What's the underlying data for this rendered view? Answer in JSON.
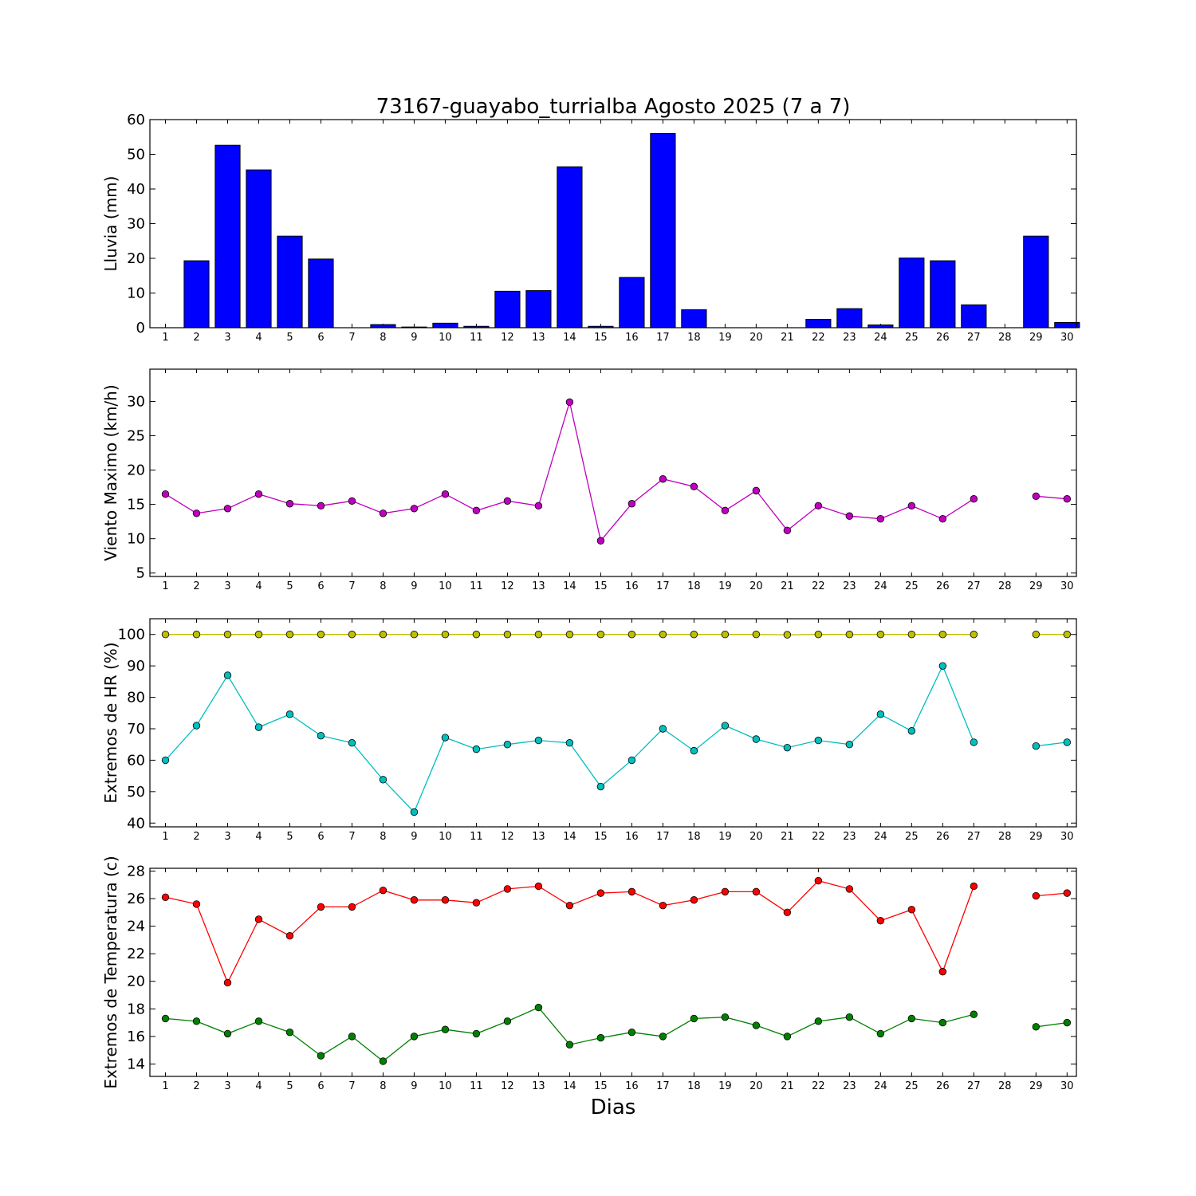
{
  "chart_data": [
    {
      "type": "bar",
      "title": "73167-guayabo_turrialba Agosto 2025  (7 a 7)",
      "ylabel": "Lluvia (mm)",
      "xlabel": "",
      "ylim": [
        0,
        60
      ],
      "yticks": [
        0,
        10,
        20,
        30,
        40,
        50,
        60
      ],
      "x": [
        1,
        2,
        3,
        4,
        5,
        6,
        7,
        8,
        9,
        10,
        11,
        12,
        13,
        14,
        15,
        16,
        17,
        18,
        19,
        20,
        21,
        22,
        23,
        24,
        25,
        26,
        27,
        28,
        29,
        30
      ],
      "series": [
        {
          "color": "#0000ff",
          "values": [
            0,
            19.3,
            52.6,
            45.5,
            26.4,
            19.8,
            0,
            0.9,
            0.2,
            1.3,
            0.4,
            10.5,
            10.7,
            46.4,
            0.4,
            14.5,
            56.0,
            5.2,
            0,
            0,
            0,
            2.4,
            5.5,
            0.8,
            20.1,
            19.3,
            6.6,
            null,
            26.4,
            1.5
          ]
        }
      ]
    },
    {
      "type": "line",
      "ylabel": "Viento Maximo (km/h)",
      "xlabel": "",
      "ylim": [
        4.5,
        34.7
      ],
      "yticks": [
        5,
        10,
        15,
        20,
        25,
        30
      ],
      "x": [
        1,
        2,
        3,
        4,
        5,
        6,
        7,
        8,
        9,
        10,
        11,
        12,
        13,
        14,
        15,
        16,
        17,
        18,
        19,
        20,
        21,
        22,
        23,
        24,
        25,
        26,
        27,
        28,
        29,
        30
      ],
      "series": [
        {
          "color": "#bf00bf",
          "values": [
            16.5,
            13.7,
            14.4,
            16.5,
            15.1,
            14.8,
            15.5,
            13.7,
            14.4,
            16.5,
            14.1,
            15.5,
            14.8,
            29.9,
            9.7,
            15.1,
            18.7,
            17.6,
            14.1,
            17.0,
            11.2,
            14.8,
            13.3,
            12.9,
            14.8,
            12.9,
            15.8,
            null,
            16.2,
            15.8
          ]
        }
      ]
    },
    {
      "type": "line",
      "ylabel": "Extremos de HR (%)",
      "xlabel": "",
      "ylim": [
        38.8,
        105
      ],
      "yticks": [
        40,
        50,
        60,
        70,
        80,
        90,
        100
      ],
      "x": [
        1,
        2,
        3,
        4,
        5,
        6,
        7,
        8,
        9,
        10,
        11,
        12,
        13,
        14,
        15,
        16,
        17,
        18,
        19,
        20,
        21,
        22,
        23,
        24,
        25,
        26,
        27,
        28,
        29,
        30
      ],
      "series": [
        {
          "color": "#bfbf00",
          "values": [
            100,
            100,
            100,
            100,
            100,
            100,
            100,
            100,
            100,
            100,
            100,
            100,
            100,
            100,
            100,
            100,
            100,
            100,
            100,
            100,
            99.9,
            100,
            100,
            100,
            100,
            100,
            100,
            null,
            100,
            100
          ]
        },
        {
          "color": "#00bfbf",
          "values": [
            60,
            71,
            87,
            70.5,
            74.6,
            67.8,
            65.5,
            53.8,
            43.5,
            67.2,
            63.5,
            65,
            66.3,
            65.5,
            51.6,
            60,
            70,
            63,
            71,
            66.7,
            64,
            66.3,
            65,
            74.6,
            69.3,
            90,
            65.7,
            null,
            64.5,
            65.7
          ]
        }
      ]
    },
    {
      "type": "line",
      "ylabel": "Extremos de Temperatura (c)",
      "xlabel": "Dias",
      "ylim": [
        13.1,
        28.2
      ],
      "yticks": [
        14,
        16,
        18,
        20,
        22,
        24,
        26,
        28
      ],
      "x": [
        1,
        2,
        3,
        4,
        5,
        6,
        7,
        8,
        9,
        10,
        11,
        12,
        13,
        14,
        15,
        16,
        17,
        18,
        19,
        20,
        21,
        22,
        23,
        24,
        25,
        26,
        27,
        28,
        29,
        30
      ],
      "series": [
        {
          "color": "#ff0000",
          "values": [
            26.1,
            25.6,
            19.9,
            24.5,
            23.3,
            25.4,
            25.4,
            26.6,
            25.9,
            25.9,
            25.7,
            26.7,
            26.9,
            25.5,
            26.4,
            26.5,
            25.5,
            25.9,
            26.5,
            26.5,
            25.0,
            27.3,
            26.7,
            24.4,
            25.2,
            20.7,
            26.9,
            null,
            26.2,
            26.4
          ]
        },
        {
          "color": "#008000",
          "values": [
            17.3,
            17.1,
            16.2,
            17.1,
            16.3,
            14.6,
            16.0,
            14.2,
            16.0,
            16.5,
            16.2,
            17.1,
            18.1,
            15.4,
            15.9,
            16.3,
            16.0,
            17.3,
            17.4,
            16.8,
            16.0,
            17.1,
            17.4,
            16.2,
            17.3,
            17.0,
            17.6,
            null,
            16.7,
            17.0
          ]
        }
      ]
    }
  ]
}
